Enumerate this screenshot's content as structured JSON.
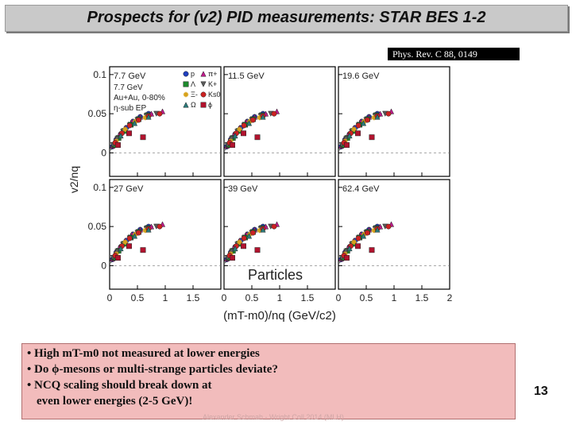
{
  "slide": {
    "title": "Prospects for (v2) PID measurements: STAR BES 1-2",
    "reference": "Phys. Rev. C 88, 0149",
    "bullets": [
      "• High mT-m0 not measured at lower energies",
      "• Do ϕ-mesons or multi-strange particles deviate?",
      "• NCQ scaling should break down at",
      "even lower energies (2-5 GeV)!"
    ],
    "page_number": "13",
    "footer": "Alexander Schmah - Wright Coll 2014 (MLH)"
  },
  "chart_data": {
    "type": "scatter",
    "ylabel": "v2/nq",
    "xlabel": "(mT-m0)/nq (GeV/c2)",
    "xlim": [
      0,
      2
    ],
    "ylim": [
      -0.03,
      0.11
    ],
    "x_ticks": [
      "0",
      "0.5",
      "1",
      "1.5",
      "2"
    ],
    "y_ticks": [
      "0",
      "0.05",
      "0.1"
    ],
    "annotation": "Particles",
    "legend": {
      "info": [
        "7.7 GeV",
        "Au+Au, 0-80%",
        "η-sub EP"
      ],
      "species": [
        "p",
        "π+",
        "Λ",
        "K+",
        "Ξ-",
        "Ks0",
        "Ω",
        "ϕ"
      ],
      "colors": [
        "#1f3fbf",
        "#c01b8c",
        "#1e8a2e",
        "#5a5a5a",
        "#d7a21b",
        "#cc2222",
        "#2a7a7a",
        "#b2132e"
      ]
    },
    "panels": [
      {
        "label": "7.7 GeV",
        "show_legend": true
      },
      {
        "label": "11.5 GeV"
      },
      {
        "label": "19.6 GeV"
      },
      {
        "label": "27 GeV"
      },
      {
        "label": "39 GeV"
      },
      {
        "label": "62.4 GeV"
      }
    ],
    "series": [
      {
        "name": "p",
        "x": [
          0.05,
          0.12,
          0.2,
          0.3,
          0.42,
          0.55,
          0.7
        ],
        "y": [
          0.008,
          0.017,
          0.024,
          0.032,
          0.04,
          0.046,
          0.05
        ]
      },
      {
        "name": "π+",
        "x": [
          0.05,
          0.1,
          0.18,
          0.28,
          0.4,
          0.55,
          0.75,
          0.95
        ],
        "y": [
          0.009,
          0.016,
          0.024,
          0.032,
          0.04,
          0.046,
          0.05,
          0.053
        ]
      },
      {
        "name": "Λ",
        "x": [
          0.08,
          0.16,
          0.26,
          0.38,
          0.52,
          0.68
        ],
        "y": [
          0.01,
          0.019,
          0.028,
          0.036,
          0.043,
          0.048
        ]
      },
      {
        "name": "K+",
        "x": [
          0.06,
          0.14,
          0.24,
          0.36,
          0.5,
          0.66,
          0.84
        ],
        "y": [
          0.01,
          0.018,
          0.027,
          0.035,
          0.042,
          0.047,
          0.05
        ]
      },
      {
        "name": "Ξ-",
        "x": [
          0.12,
          0.28,
          0.46,
          0.64
        ],
        "y": [
          0.015,
          0.03,
          0.04,
          0.045
        ]
      },
      {
        "name": "Ks0",
        "x": [
          0.1,
          0.22,
          0.36,
          0.52,
          0.7,
          0.9
        ],
        "y": [
          0.013,
          0.025,
          0.035,
          0.042,
          0.047,
          0.05
        ]
      },
      {
        "name": "Ω",
        "x": [
          0.2,
          0.45,
          0.7
        ],
        "y": [
          0.022,
          0.038,
          0.046
        ]
      },
      {
        "name": "ϕ",
        "x": [
          0.15,
          0.35,
          0.6
        ],
        "y": [
          0.01,
          0.025,
          0.02
        ]
      }
    ]
  }
}
